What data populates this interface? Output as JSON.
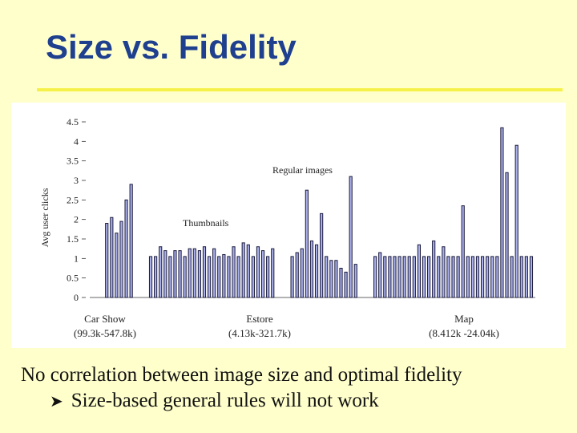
{
  "slide": {
    "title": "Size vs. Fidelity",
    "bullet_main": "No correlation between image size and optimal fidelity",
    "bullet_sub": "Size-based general rules will not work",
    "sub_bullet_icon": "arrow-bullet-icon"
  },
  "colors": {
    "background": "#ffffcc",
    "title": "#1f3f8f",
    "rule": "#f6f14a",
    "bar_fill": "#aab0ea",
    "bar_stroke": "#1a1a3c"
  },
  "chart_data": {
    "type": "bar",
    "ylabel": "Avg user clicks",
    "ylim": [
      0,
      4.5
    ],
    "yticks": [
      "0",
      "0.5",
      "1",
      "1.5",
      "2",
      "2.5",
      "3",
      "3.5",
      "4",
      "4.5"
    ],
    "groups": [
      {
        "label": "Car Show",
        "range": "(99.3k-547.8k)"
      },
      {
        "label": "Estore",
        "range": "(4.13k-321.7k)"
      },
      {
        "label": "Map",
        "range": "(8.412k -24.04k)"
      }
    ],
    "annotations": [
      {
        "text": "Regular images"
      },
      {
        "text": "Thumbnails"
      }
    ],
    "values": [
      0,
      0,
      1.9,
      2.05,
      1.65,
      1.95,
      2.5,
      2.9,
      0,
      0,
      0,
      1.05,
      1.05,
      1.3,
      1.2,
      1.05,
      1.2,
      1.2,
      1.05,
      1.25,
      1.25,
      1.2,
      1.3,
      1.05,
      1.25,
      1.05,
      1.1,
      1.05,
      1.3,
      1.05,
      1.4,
      1.35,
      1.05,
      1.3,
      1.2,
      1.05,
      1.25,
      0,
      0,
      0,
      1.05,
      1.15,
      1.25,
      2.75,
      1.45,
      1.35,
      2.15,
      1.05,
      0.95,
      0.95,
      0.75,
      0.65,
      3.1,
      0.85,
      0,
      0,
      0,
      1.05,
      1.15,
      1.05,
      1.05,
      1.05,
      1.05,
      1.05,
      1.05,
      1.05,
      1.35,
      1.05,
      1.05,
      1.45,
      1.05,
      1.3,
      1.05,
      1.05,
      1.05,
      2.35,
      1.05,
      1.05,
      1.05,
      1.05,
      1.05,
      1.05,
      1.05,
      4.35,
      3.2,
      1.05,
      3.9,
      1.05,
      1.05,
      1.05
    ]
  }
}
